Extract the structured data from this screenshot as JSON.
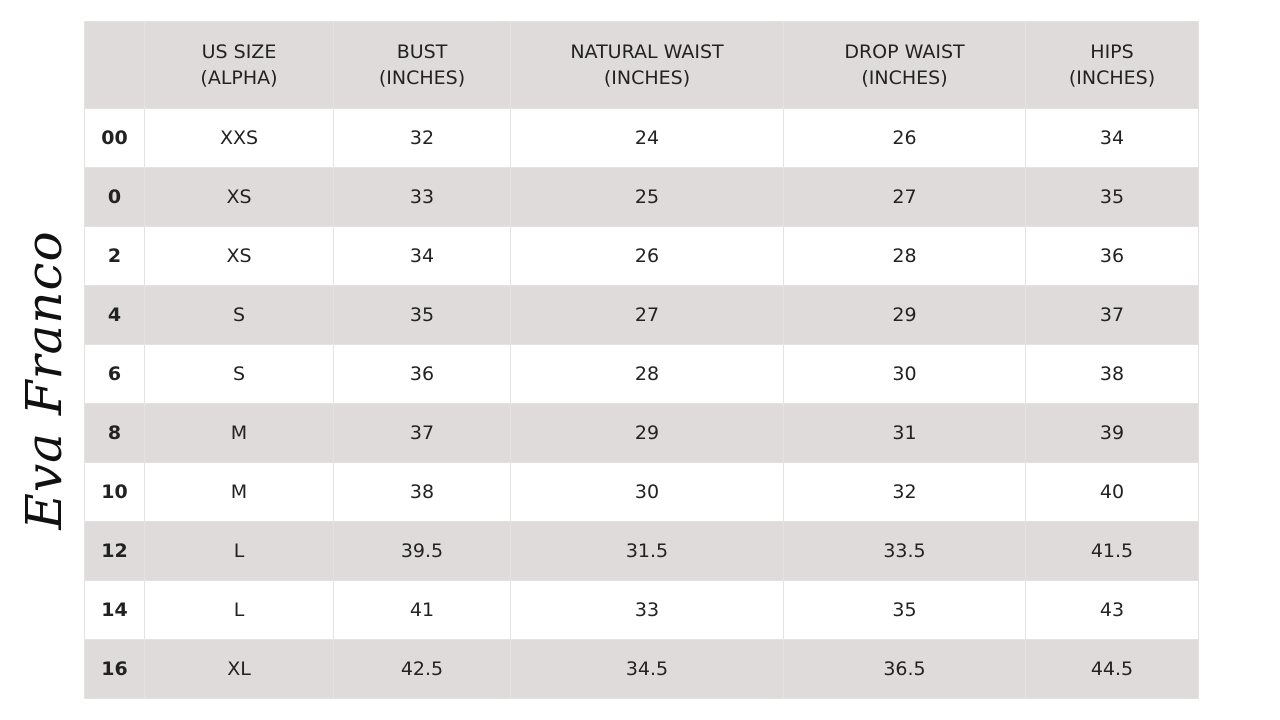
{
  "logo": "Eva Franco",
  "table": {
    "header": [
      [
        "US SIZE",
        "(ALPHA)"
      ],
      [
        "BUST",
        "(INCHES)"
      ],
      [
        "NATURAL WAIST",
        "(INCHES)"
      ],
      [
        "DROP WAIST",
        "(INCHES)"
      ],
      [
        "HIPS",
        "(INCHES)"
      ]
    ],
    "rows": [
      [
        "00",
        "XXS",
        "32",
        "24",
        "26",
        "34"
      ],
      [
        "0",
        "XS",
        "33",
        "25",
        "27",
        "35"
      ],
      [
        "2",
        "XS",
        "34",
        "26",
        "28",
        "36"
      ],
      [
        "4",
        "S",
        "35",
        "27",
        "29",
        "37"
      ],
      [
        "6",
        "S",
        "36",
        "28",
        "30",
        "38"
      ],
      [
        "8",
        "M",
        "37",
        "29",
        "31",
        "39"
      ],
      [
        "10",
        "M",
        "38",
        "30",
        "32",
        "40"
      ],
      [
        "12",
        "L",
        "39.5",
        "31.5",
        "33.5",
        "41.5"
      ],
      [
        "14",
        "L",
        "41",
        "33",
        "35",
        "43"
      ],
      [
        "16",
        "XL",
        "42.5",
        "34.5",
        "36.5",
        "44.5"
      ]
    ]
  }
}
